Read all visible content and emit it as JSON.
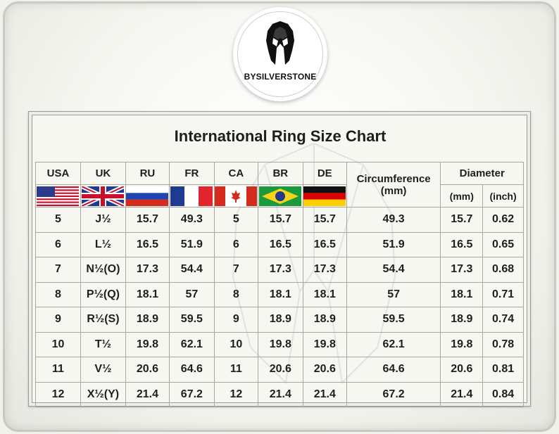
{
  "brand": "BYSILVERSTONE",
  "title": "International Ring Size Chart",
  "columns": {
    "usa": "USA",
    "uk": "UK",
    "ru": "RU",
    "fr": "FR",
    "ca": "CA",
    "br": "BR",
    "de": "DE",
    "circumference": "Circumference",
    "circumference_unit": "(mm)",
    "diameter": "Diameter",
    "diameter_mm": "(mm)",
    "diameter_inch": "(inch)"
  },
  "flags": [
    "us-flag",
    "uk-flag",
    "ru-flag",
    "fr-flag",
    "ca-flag",
    "br-flag",
    "de-flag"
  ],
  "rows": [
    {
      "usa": "5",
      "uk": "J½",
      "ru": "15.7",
      "fr": "49.3",
      "ca": "5",
      "br": "15.7",
      "de": "15.7",
      "circ": "49.3",
      "dmm": "15.7",
      "din": "0.62"
    },
    {
      "usa": "6",
      "uk": "L½",
      "ru": "16.5",
      "fr": "51.9",
      "ca": "6",
      "br": "16.5",
      "de": "16.5",
      "circ": "51.9",
      "dmm": "16.5",
      "din": "0.65"
    },
    {
      "usa": "7",
      "uk": "N½(O)",
      "ru": "17.3",
      "fr": "54.4",
      "ca": "7",
      "br": "17.3",
      "de": "17.3",
      "circ": "54.4",
      "dmm": "17.3",
      "din": "0.68"
    },
    {
      "usa": "8",
      "uk": "P½(Q)",
      "ru": "18.1",
      "fr": "57",
      "ca": "8",
      "br": "18.1",
      "de": "18.1",
      "circ": "57",
      "dmm": "18.1",
      "din": "0.71"
    },
    {
      "usa": "9",
      "uk": "R½(S)",
      "ru": "18.9",
      "fr": "59.5",
      "ca": "9",
      "br": "18.9",
      "de": "18.9",
      "circ": "59.5",
      "dmm": "18.9",
      "din": "0.74"
    },
    {
      "usa": "10",
      "uk": "T½",
      "ru": "19.8",
      "fr": "62.1",
      "ca": "10",
      "br": "19.8",
      "de": "19.8",
      "circ": "62.1",
      "dmm": "19.8",
      "din": "0.78"
    },
    {
      "usa": "11",
      "uk": "V½",
      "ru": "20.6",
      "fr": "64.6",
      "ca": "11",
      "br": "20.6",
      "de": "20.6",
      "circ": "64.6",
      "dmm": "20.6",
      "din": "0.81"
    },
    {
      "usa": "12",
      "uk": "X½(Y)",
      "ru": "21.4",
      "fr": "67.2",
      "ca": "12",
      "br": "21.4",
      "de": "21.4",
      "circ": "67.2",
      "dmm": "21.4",
      "din": "0.84"
    }
  ]
}
